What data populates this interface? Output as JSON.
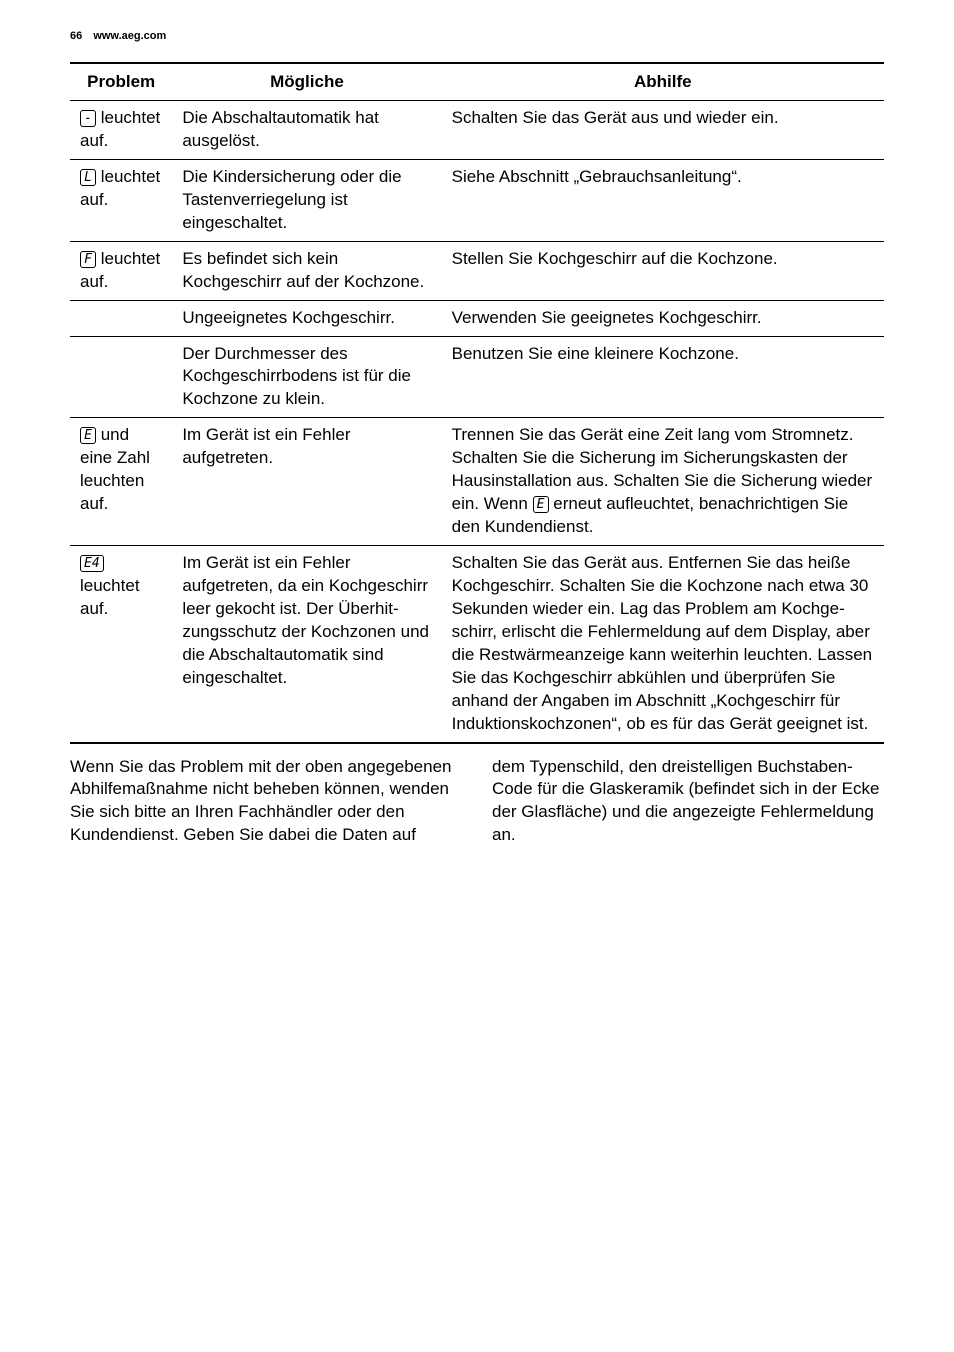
{
  "header": {
    "page_number": "66",
    "website": "www.aeg.com"
  },
  "table": {
    "headers": {
      "col1": "Problem",
      "col2": "Mögliche",
      "col3": "Abhilfe"
    },
    "rows": [
      {
        "symbol": "-",
        "problem_suffix": " leuchtet auf.",
        "cause": "Die Abschaltautomatik hat ausgelöst.",
        "remedy": "Schalten Sie das Gerät aus und wieder ein."
      },
      {
        "symbol": "L",
        "problem_suffix": " leuchtet auf.",
        "cause": "Die Kindersicherung oder die Tastenverriege­lung ist eingeschaltet.",
        "remedy": "Siehe Abschnitt „Ge­brauchsanleitung“."
      },
      {
        "symbol": "F",
        "problem_suffix": " leuchtet auf.",
        "cause": "Es befindet sich kein Kochgeschirr auf der Kochzone.",
        "remedy": "Stellen Sie Kochgeschirr auf die Kochzone."
      },
      {
        "symbol": "",
        "problem_suffix": "",
        "cause": "Ungeeignetes Kochge­schirr.",
        "remedy": "Verwenden Sie geeigne­tes Kochgeschirr."
      },
      {
        "symbol": "",
        "problem_suffix": "",
        "cause": "Der Durchmesser des Kochgeschirrbodens ist für die Kochzone zu klein.",
        "remedy": "Benutzen Sie eine kleine­re Kochzone."
      },
      {
        "symbol": "E",
        "problem_suffix": " und eine Zahl leuch­ten auf.",
        "cause": "Im Gerät ist ein Fehler aufgetreten.",
        "remedy_pre": "Trennen Sie das Gerät eine Zeit lang vom Stromnetz. Schalten Sie die Sicherung im Siche­rungskasten der Hausin­stallation aus. Schalten Sie die Sicherung wieder ein. Wenn ",
        "remedy_symbol": "E",
        "remedy_post": " erneut auf­leuchtet, benachrichti­gen Sie den Kunden­dienst."
      },
      {
        "symbol": "E4",
        "problem_suffix": " leuchtet auf.",
        "cause": "Im Gerät ist ein Fehler aufgetreten, da ein Kochgeschirr leer ge­kocht ist. Der Überhit­zungsschutz der Kochzo­nen und die Abschaltau­tomatik sind eingeschal­tet.",
        "remedy": "Schalten Sie das Gerät aus. Entfernen Sie das heiße Kochgeschirr. Schalten Sie die Kochzo­ne nach etwa 30 Sekun­den wieder ein. Lag das Problem am Kochge­schirr, erlischt die Fehler­meldung auf dem Dis­play, aber die Restwär­meanzeige kann weiter­hin leuchten. Lassen Sie das Kochgeschirr abküh­len und überprüfen Sie anhand der Angaben im Abschnitt „Kochgeschirr für Induktionskochzo­nen“, ob es für das Ge­rät geeignet ist."
      }
    ]
  },
  "footer": {
    "left": "Wenn Sie das Problem mit der oben an­gegebenen Abhilfemaßnahme nicht be­heben können, wenden Sie sich bitte an Ihren Fachhändler oder den Kunden­dienst. Geben Sie dabei die Daten auf",
    "right": "dem Typenschild, den dreistelligen Buchstaben-Code für die Glaskeramik (befindet sich in der Ecke der Glasfläche) und die angezeigte Fehlermeldung an."
  },
  "style": {
    "body_width": 954,
    "background_color": "#ffffff",
    "text_color": "#000000",
    "font_family": "Arial, Helvetica, sans-serif",
    "header_fontsize": 11,
    "th_fontsize": 17,
    "td_fontsize": 17,
    "footer_fontsize": 17,
    "border_color": "#000000"
  }
}
